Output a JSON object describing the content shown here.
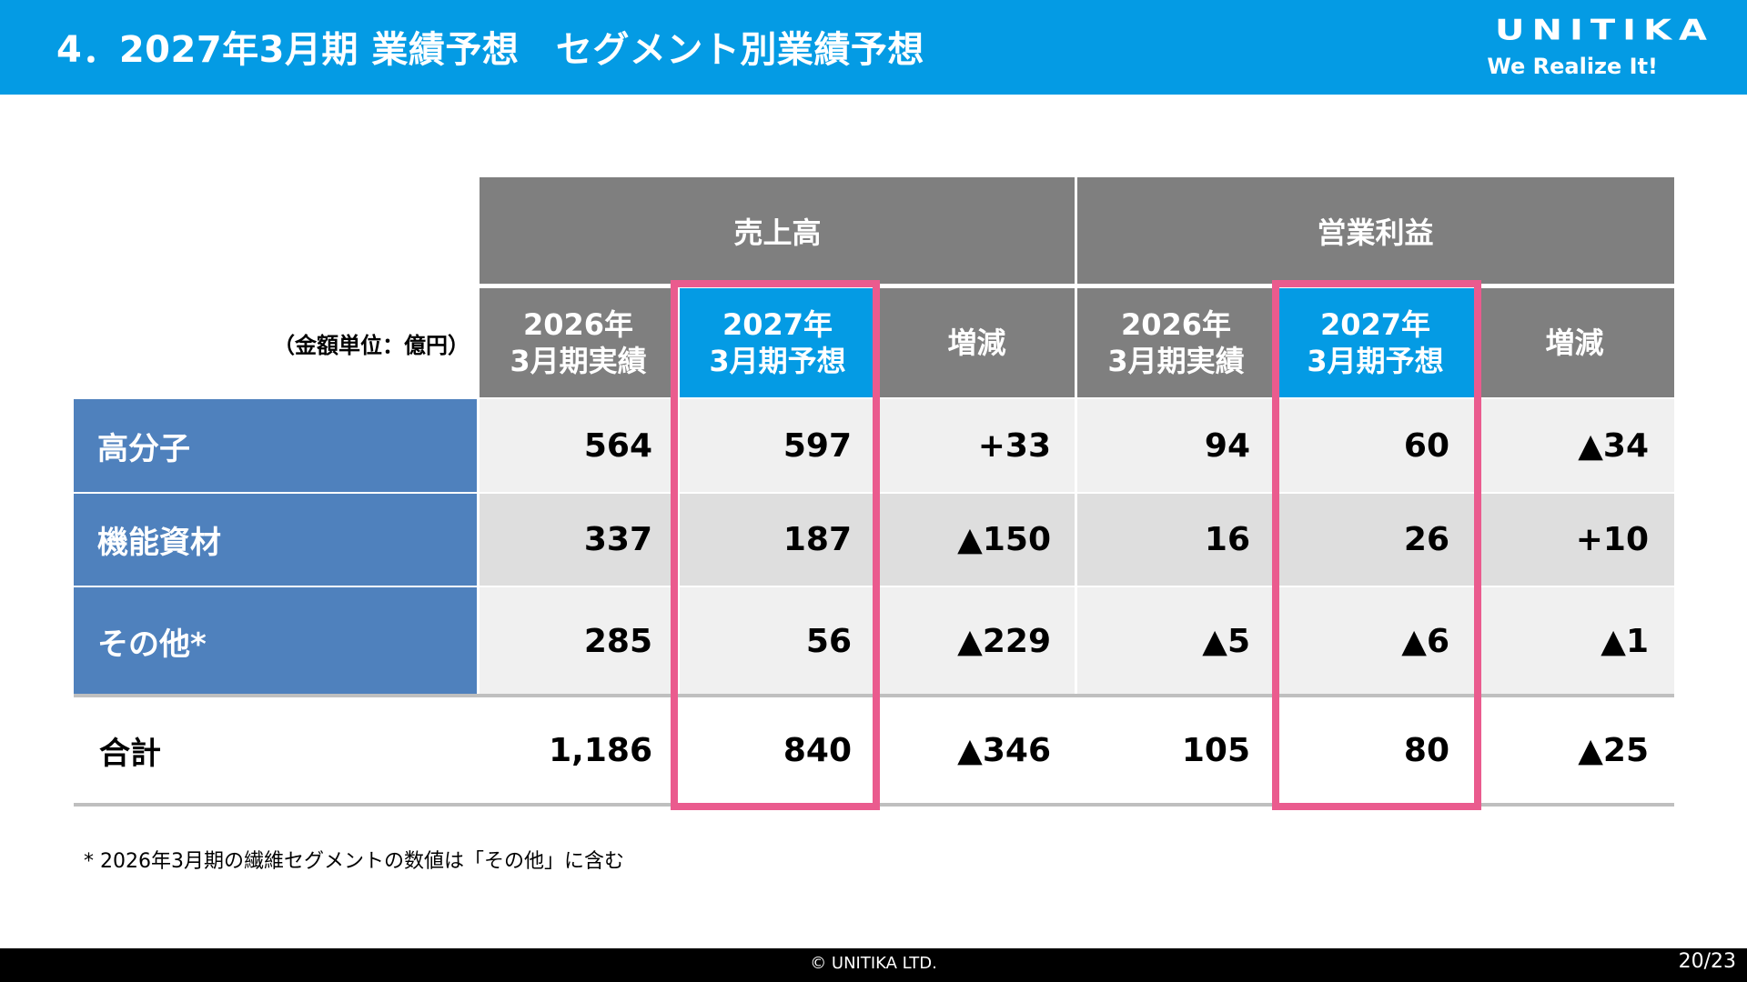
{
  "header": {
    "title": "4．2027年3月期 業績予想　セグメント別業績予想",
    "logo_main": "UNITIKA",
    "logo_tagline": "We Realize It!"
  },
  "table": {
    "unit_label": "（金額単位：億円）",
    "groups": [
      "売上高",
      "営業利益"
    ],
    "subheaders": [
      {
        "line1": "2026年",
        "line2": "3月期実績"
      },
      {
        "line1": "2027年",
        "line2": "3月期予想"
      },
      {
        "line1": "増減",
        "line2": ""
      },
      {
        "line1": "2026年",
        "line2": "3月期実績"
      },
      {
        "line1": "2027年",
        "line2": "3月期予想"
      },
      {
        "line1": "増減",
        "line2": ""
      }
    ],
    "rows": [
      {
        "label": "高分子",
        "values": [
          "564",
          "597",
          "+33",
          "94",
          "60",
          "▲34"
        ]
      },
      {
        "label": "機能資材",
        "values": [
          "337",
          "187",
          "▲150",
          "16",
          "26",
          "+10"
        ]
      },
      {
        "label": "その他*",
        "values": [
          "285",
          "56",
          "▲229",
          "▲5",
          "▲6",
          "▲1"
        ]
      }
    ],
    "total": {
      "label": "合計",
      "values": [
        "1,186",
        "840",
        "▲346",
        "105",
        "80",
        "▲25"
      ]
    }
  },
  "footnote": "* 2026年3月期の繊維セグメントの数値は「その他」に含む",
  "footer": {
    "copyright": "© UNITIKA LTD.",
    "page": "20/23"
  },
  "colors": {
    "brand_blue": "#049be4",
    "header_gray": "#7f7f7f",
    "row_header_blue": "#4f81bd",
    "highlight_pink": "#ea5b8e",
    "row_light": "#f0f0f0",
    "row_dark": "#dedede"
  }
}
